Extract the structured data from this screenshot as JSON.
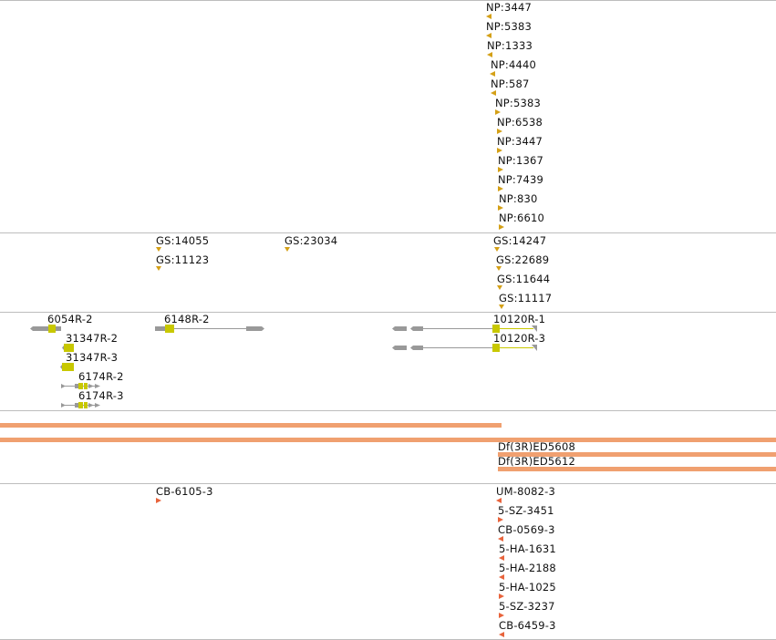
{
  "np_track": {
    "features": [
      {
        "label": "NP:3447"
      },
      {
        "label": "NP:5383"
      },
      {
        "label": "NP:1333"
      },
      {
        "label": "NP:4440"
      },
      {
        "label": "NP:587"
      },
      {
        "label": "NP:5383"
      },
      {
        "label": "NP:6538"
      },
      {
        "label": "NP:3447"
      },
      {
        "label": "NP:1367"
      },
      {
        "label": "NP:7439"
      },
      {
        "label": "NP:830"
      },
      {
        "label": "NP:6610"
      }
    ]
  },
  "gs_track": {
    "features": [
      {
        "label": "GS:14055"
      },
      {
        "label": "GS:11123"
      },
      {
        "label": "GS:23034"
      },
      {
        "label": "GS:14247"
      },
      {
        "label": "GS:22689"
      },
      {
        "label": "GS:11644"
      },
      {
        "label": "GS:11117"
      }
    ]
  },
  "gene_track": {
    "features": [
      {
        "label": "6054R-2"
      },
      {
        "label": "31347R-2"
      },
      {
        "label": "31347R-3"
      },
      {
        "label": "6174R-2"
      },
      {
        "label": "6174R-3"
      },
      {
        "label": "6148R-2"
      },
      {
        "label": "10120R-1"
      },
      {
        "label": "10120R-3"
      }
    ],
    "colors": {
      "exon": "#999999",
      "cds": "#c8c800",
      "intron": "#999999"
    }
  },
  "deficiency_track": {
    "features": [
      {
        "label": "Df(3R)ED5608"
      },
      {
        "label": "Df(3R)ED5612"
      }
    ],
    "color": "#f0a070"
  },
  "insertion_track": {
    "features": [
      {
        "label": "CB-6105-3"
      },
      {
        "label": "UM-8082-3"
      },
      {
        "label": "5-SZ-3451"
      },
      {
        "label": "CB-0569-3"
      },
      {
        "label": "5-HA-1631"
      },
      {
        "label": "5-HA-2188"
      },
      {
        "label": "5-HA-1025"
      },
      {
        "label": "5-SZ-3237"
      },
      {
        "label": "CB-6459-3"
      }
    ],
    "color": "#e8643c"
  }
}
